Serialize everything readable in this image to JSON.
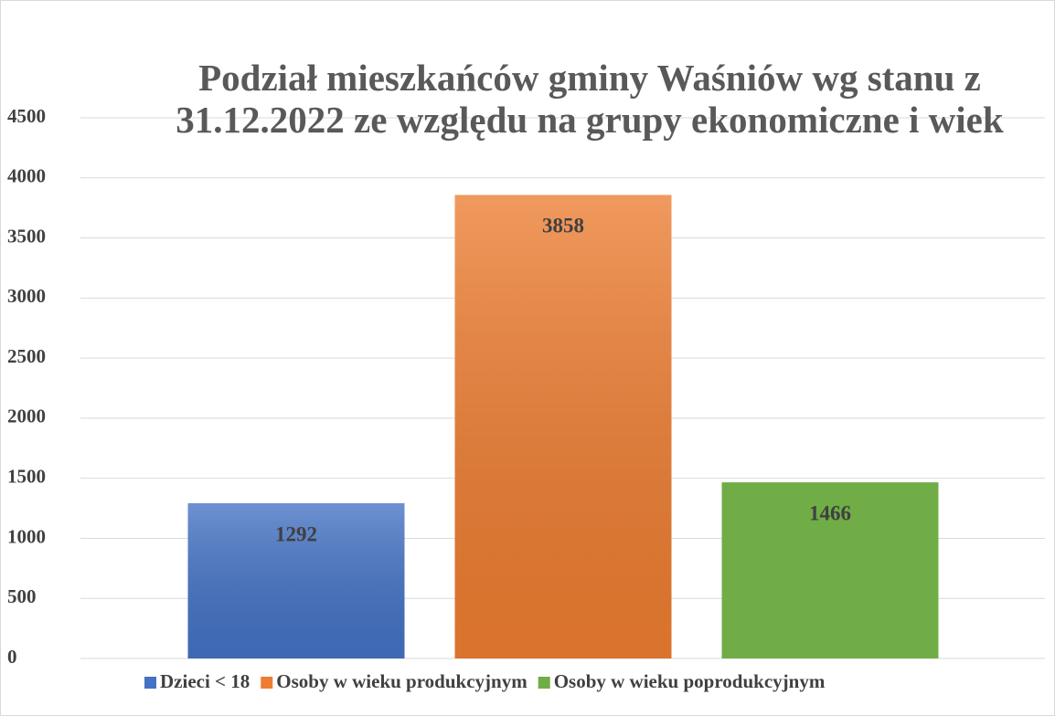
{
  "chart_data": {
    "type": "bar",
    "title": "Podział mieszkańców gminy Waśniów wg stanu z 31.12.2022 ze względu na grupy ekonomiczne i wiek",
    "categories": [
      "Dzieci < 18",
      "Osoby w wieku produkcyjnym",
      "Osoby w wieku poprodukcyjnym"
    ],
    "values": [
      1292,
      3858,
      1466
    ],
    "colors": [
      "#4472c4",
      "#ed7d31",
      "#70ad47"
    ],
    "ylim": [
      0,
      4500
    ],
    "yticks": [
      0,
      500,
      1000,
      1500,
      2000,
      2500,
      3000,
      3500,
      4000,
      4500
    ],
    "grid": true,
    "legend": "bottom"
  }
}
